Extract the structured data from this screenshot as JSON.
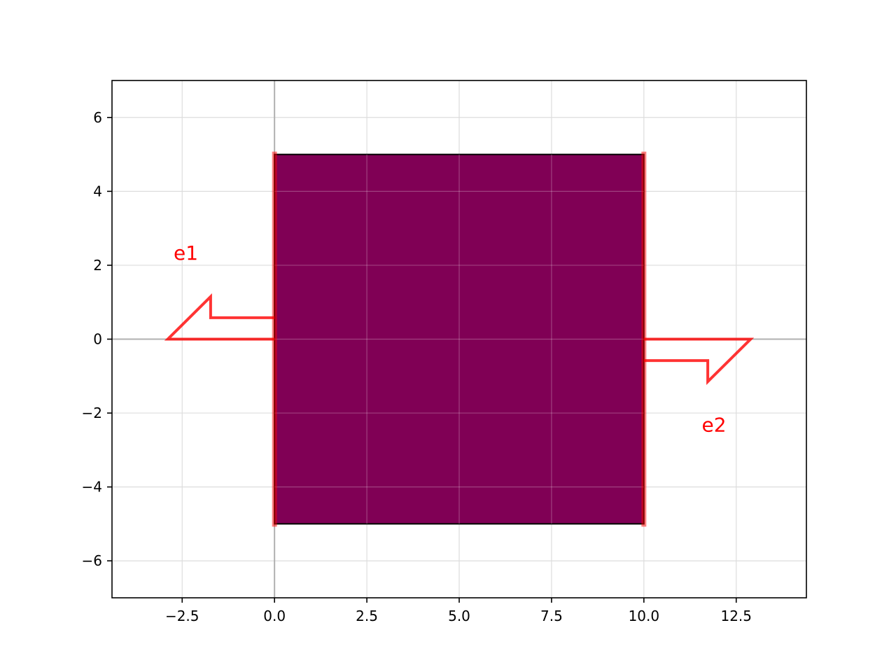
{
  "chart_data": {
    "type": "diagram",
    "title": "",
    "xlabel": "",
    "ylabel": "",
    "xlim": [
      -4.4,
      14.4
    ],
    "ylim": [
      -7,
      7
    ],
    "grid": true,
    "x_ticks": [
      {
        "value": -2.5,
        "label": "−2.5"
      },
      {
        "value": 0,
        "label": "0.0"
      },
      {
        "value": 2.5,
        "label": "2.5"
      },
      {
        "value": 5,
        "label": "5.0"
      },
      {
        "value": 7.5,
        "label": "7.5"
      },
      {
        "value": 10,
        "label": "10.0"
      },
      {
        "value": 12.5,
        "label": "12.5"
      }
    ],
    "y_ticks": [
      {
        "value": -6,
        "label": "−6"
      },
      {
        "value": -4,
        "label": "−4"
      },
      {
        "value": -2,
        "label": "−2"
      },
      {
        "value": 0,
        "label": "0"
      },
      {
        "value": 2,
        "label": "2"
      },
      {
        "value": 4,
        "label": "4"
      },
      {
        "value": 6,
        "label": "6"
      }
    ],
    "polygon": {
      "name": "component",
      "color": "#800055",
      "edge_color": "#000000",
      "points": [
        [
          0,
          -5
        ],
        [
          10,
          -5
        ],
        [
          10,
          5
        ],
        [
          0,
          5
        ]
      ]
    },
    "ports": [
      {
        "label": "e1",
        "color": "#ff0000",
        "edge": [
          [
            0,
            -5
          ],
          [
            0,
            5
          ]
        ],
        "arrow": [
          [
            0,
            0.58
          ],
          [
            -1.73,
            0.58
          ],
          [
            -1.73,
            1.15
          ],
          [
            -2.89,
            0
          ],
          [
            0,
            0
          ]
        ],
        "label_pos": [
          -2.4,
          2.3
        ]
      },
      {
        "label": "e2",
        "color": "#ff0000",
        "edge": [
          [
            10,
            -5
          ],
          [
            10,
            5
          ]
        ],
        "arrow": [
          [
            10,
            -0.58
          ],
          [
            11.73,
            -0.58
          ],
          [
            11.73,
            -1.15
          ],
          [
            12.89,
            0
          ],
          [
            10,
            0
          ]
        ],
        "label_pos": [
          11.9,
          -2.35
        ]
      }
    ]
  }
}
